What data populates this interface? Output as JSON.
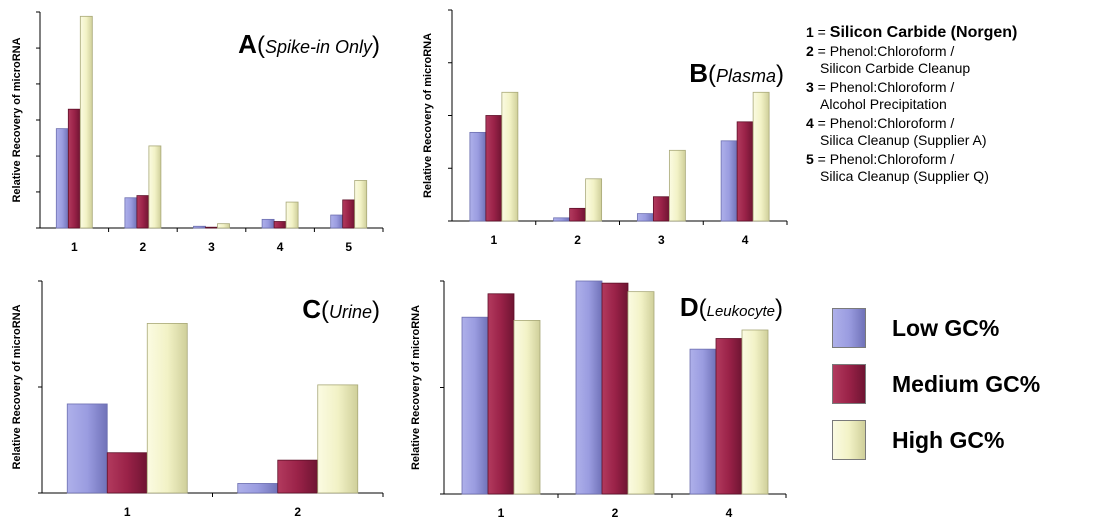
{
  "chart_data": [
    {
      "type": "bar",
      "panel": "A",
      "title_letter": "A",
      "title_sub": "Spike-in Only",
      "ylabel": "Relative Recovery of microRNA",
      "categories": [
        "1",
        "2",
        "3",
        "4",
        "5"
      ],
      "ylim": [
        0,
        100
      ],
      "yticks": [
        0,
        16.7,
        33.3,
        50,
        66.7,
        83.3,
        100
      ],
      "series": [
        {
          "name": "Low GC%",
          "values": [
            46,
            14,
            0.8,
            4,
            6
          ]
        },
        {
          "name": "Medium GC%",
          "values": [
            55,
            15,
            0.3,
            3,
            13
          ]
        },
        {
          "name": "High GC%",
          "values": [
            98,
            38,
            2,
            12,
            22
          ]
        }
      ]
    },
    {
      "type": "bar",
      "panel": "B",
      "title_letter": "B",
      "title_sub": "Plasma",
      "ylabel": "Relative Recovery of microRNA",
      "categories": [
        "1",
        "2",
        "3",
        "4"
      ],
      "ylim": [
        0,
        100
      ],
      "yticks": [
        0,
        25,
        50,
        75,
        100
      ],
      "series": [
        {
          "name": "Low GC%",
          "values": [
            42,
            1.5,
            3.5,
            38
          ]
        },
        {
          "name": "Medium GC%",
          "values": [
            50,
            6,
            11.5,
            47
          ]
        },
        {
          "name": "High GC%",
          "values": [
            61,
            20,
            33.5,
            61
          ]
        }
      ]
    },
    {
      "type": "bar",
      "panel": "C",
      "title_letter": "C",
      "title_sub": "Urine",
      "ylabel": "Relative Recovery of microRNA",
      "categories": [
        "1",
        "2"
      ],
      "ylim": [
        0,
        100
      ],
      "yticks": [
        0,
        50,
        100
      ],
      "series": [
        {
          "name": "Low GC%",
          "values": [
            42,
            4.5
          ]
        },
        {
          "name": "Medium GC%",
          "values": [
            19,
            15.5
          ]
        },
        {
          "name": "High GC%",
          "values": [
            80,
            51
          ]
        }
      ]
    },
    {
      "type": "bar",
      "panel": "D",
      "title_letter": "D",
      "title_sub": "Leukocyte",
      "ylabel": "Relative Recovery of microRNA",
      "categories": [
        "1",
        "2",
        "4"
      ],
      "ylim": [
        0,
        100
      ],
      "yticks": [
        0,
        50,
        100
      ],
      "series": [
        {
          "name": "Low GC%",
          "values": [
            83,
            100,
            68
          ]
        },
        {
          "name": "Medium GC%",
          "values": [
            94,
            99,
            73
          ]
        },
        {
          "name": "High GC%",
          "values": [
            81.5,
            95,
            77
          ]
        }
      ]
    }
  ],
  "key": [
    {
      "num": "1",
      "eq": " = ",
      "lines": [
        "Silicon Carbide (Norgen)"
      ]
    },
    {
      "num": "2",
      "eq": " = ",
      "lines": [
        "Phenol:Chloroform /",
        "Silicon Carbide Cleanup"
      ]
    },
    {
      "num": "3",
      "eq": " = ",
      "lines": [
        "Phenol:Chloroform /",
        "Alcohol Precipitation"
      ]
    },
    {
      "num": "4",
      "eq": " = ",
      "lines": [
        "Phenol:Chloroform /",
        "Silica Cleanup (Supplier A)"
      ]
    },
    {
      "num": "5",
      "eq": " = ",
      "lines": [
        "Phenol:Chloroform /",
        "Silica Cleanup (Supplier Q)"
      ]
    }
  ],
  "legend": [
    {
      "label": "Low GC%",
      "color": "#8f90d6"
    },
    {
      "label": "Medium GC%",
      "color": "#8a1f40"
    },
    {
      "label": "High GC%",
      "color": "#f3f3c4"
    }
  ]
}
